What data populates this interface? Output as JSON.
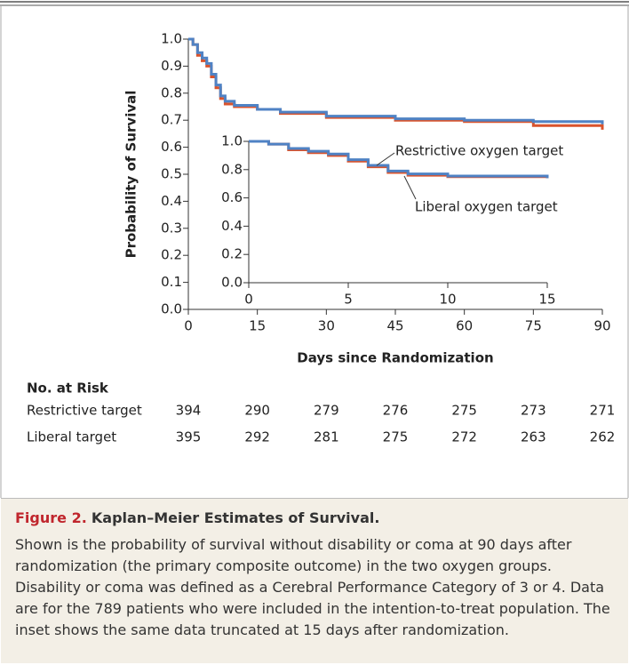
{
  "chart_data": {
    "type": "line",
    "y_label": "Probability of Survival",
    "x_label": "Days since Randomization",
    "x": [
      0,
      1,
      2,
      3,
      4,
      5,
      6,
      7,
      8,
      10,
      15,
      20,
      30,
      45,
      60,
      75,
      90
    ],
    "series": [
      {
        "name": "Liberal oxygen target",
        "color": "#d9532c",
        "values": [
          1.0,
          0.98,
          0.94,
          0.92,
          0.9,
          0.86,
          0.82,
          0.78,
          0.76,
          0.75,
          0.74,
          0.725,
          0.71,
          0.7,
          0.695,
          0.68,
          0.665
        ]
      },
      {
        "name": "Restrictive oxygen target",
        "color": "#4f82c4",
        "values": [
          1.0,
          0.98,
          0.95,
          0.93,
          0.91,
          0.87,
          0.83,
          0.79,
          0.77,
          0.755,
          0.74,
          0.73,
          0.715,
          0.705,
          0.7,
          0.695,
          0.685
        ]
      }
    ],
    "xlim": [
      0,
      90
    ],
    "xticks": [
      0,
      15,
      30,
      45,
      60,
      75,
      90
    ],
    "ylim": [
      0,
      1
    ],
    "yticks": [
      {
        "value": 0,
        "label": "0.0"
      },
      0.1,
      0.2,
      0.3,
      0.4,
      0.5,
      0.6,
      0.7,
      0.8,
      0.9,
      {
        "value": 1,
        "label": "1.0"
      }
    ],
    "inset": {
      "xlim": [
        0,
        15
      ],
      "xticks": [
        0,
        5,
        10,
        15
      ],
      "ylim": [
        0,
        1
      ],
      "yticks": [
        {
          "value": 0,
          "label": "0.0"
        },
        0.2,
        0.4,
        0.6,
        0.8,
        {
          "value": 1,
          "label": "1.0"
        }
      ]
    },
    "risk_table": {
      "title": "No. at Risk",
      "rows": [
        {
          "name": "Restrictive target",
          "values": [
            394,
            290,
            279,
            276,
            275,
            273,
            271
          ]
        },
        {
          "name": "Liberal target",
          "values": [
            395,
            292,
            281,
            275,
            272,
            263,
            262
          ]
        }
      ]
    }
  },
  "figure": {
    "label": "Figure 2.",
    "title": "Kaplan–Meier Estimates of Survival.",
    "text": "Shown is the probability of survival without disability or coma at 90 days after randomization (the primary composite outcome) in the two oxygen groups. Disability or coma was defined as a Cerebral Performance Category of 3 or 4. Data are for the 789 patients who were included in the intention-to-treat population. The inset shows the same data truncated at 15 days after randomization."
  }
}
